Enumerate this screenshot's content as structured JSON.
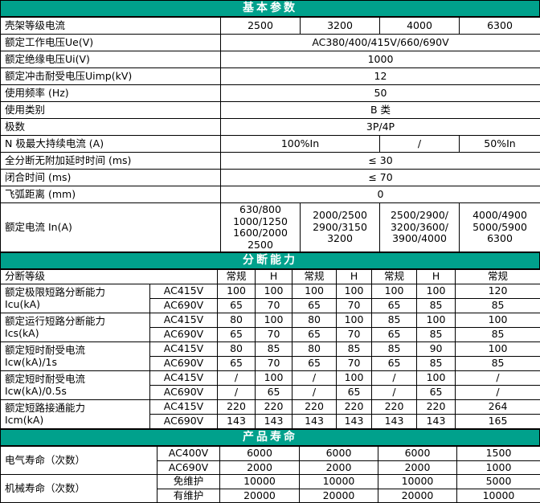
{
  "colors": {
    "accent_teal": "#00A18C",
    "grid_border": "#000000",
    "section_header_text": "#FFFFFF",
    "body_text": "#000000",
    "background": "#FFFFFF"
  },
  "sections": {
    "basic": {
      "title": "基本参数",
      "rows": [
        {
          "cells": [
            {
              "t": "壳架等级电流",
              "type": "label"
            },
            {
              "t": "2500"
            },
            {
              "t": "3200"
            },
            {
              "t": "4000"
            },
            {
              "t": "6300"
            }
          ]
        },
        {
          "cells": [
            {
              "t": "额定工作电压Ue(V)",
              "type": "label"
            },
            {
              "t": "AC380/400/415V/660/690V",
              "cs": 4
            }
          ]
        },
        {
          "cells": [
            {
              "t": "额定绝缘电压Ui(V)",
              "type": "label"
            },
            {
              "t": "1000",
              "cs": 4
            }
          ]
        },
        {
          "cells": [
            {
              "t": "额定冲击耐受电压Uimp(kV)",
              "type": "label"
            },
            {
              "t": "12",
              "cs": 4
            }
          ]
        },
        {
          "cells": [
            {
              "t": "使用频率 (Hz)",
              "type": "label"
            },
            {
              "t": "50",
              "cs": 4
            }
          ]
        },
        {
          "cells": [
            {
              "t": "使用类别",
              "type": "label"
            },
            {
              "t": "B 类",
              "cs": 4
            }
          ]
        },
        {
          "cells": [
            {
              "t": "极数",
              "type": "label"
            },
            {
              "t": "3P/4P",
              "cs": 4
            }
          ]
        },
        {
          "cells": [
            {
              "t": "N 极最大持续电流 (A)",
              "type": "label"
            },
            {
              "t": "100%In",
              "cs": 2
            },
            {
              "t": "/"
            },
            {
              "t": "50%In"
            }
          ]
        },
        {
          "cells": [
            {
              "t": "全分断无附加延时时间 (ms)",
              "type": "label"
            },
            {
              "t": "≤ 30",
              "cs": 4
            }
          ]
        },
        {
          "cells": [
            {
              "t": "闭合时间 (ms)",
              "type": "label"
            },
            {
              "t": "≤ 70",
              "cs": 4
            }
          ]
        },
        {
          "cells": [
            {
              "t": "飞弧距离 (mm)",
              "type": "label"
            },
            {
              "t": "0",
              "cs": 4
            }
          ]
        },
        {
          "cells": [
            {
              "t": "额定电流 In(A)",
              "type": "label"
            },
            {
              "t": "630/800\n1000/1250\n1600/2000\n2500"
            },
            {
              "t": "2000/2500\n2900/3150\n3200"
            },
            {
              "t": "2500/2900/\n3200/3600/\n3900/4000"
            },
            {
              "t": "4000/4900\n5000/5900\n6300"
            }
          ]
        }
      ]
    },
    "breaking": {
      "title": "分断能力",
      "rows": [
        {
          "cells": [
            {
              "t": "分断等级",
              "type": "label",
              "cs": 2
            },
            {
              "t": "常规"
            },
            {
              "t": "H"
            },
            {
              "t": "常规"
            },
            {
              "t": "H"
            },
            {
              "t": "常规"
            },
            {
              "t": "H"
            },
            {
              "t": "常规"
            }
          ]
        },
        {
          "cells": [
            {
              "t": "额定极限短路分断能力\nIcu(kA)",
              "type": "label",
              "rs": 2
            },
            {
              "t": "AC415V"
            },
            {
              "t": "100"
            },
            {
              "t": "100"
            },
            {
              "t": "100"
            },
            {
              "t": "100"
            },
            {
              "t": "100"
            },
            {
              "t": "100"
            },
            {
              "t": "120"
            }
          ]
        },
        {
          "cells": [
            {
              "t": "AC690V"
            },
            {
              "t": "65"
            },
            {
              "t": "70"
            },
            {
              "t": "65"
            },
            {
              "t": "70"
            },
            {
              "t": "65"
            },
            {
              "t": "85"
            },
            {
              "t": "85"
            }
          ]
        },
        {
          "cells": [
            {
              "t": "额定运行短路分断能力\nIcs(kA)",
              "type": "label",
              "rs": 2
            },
            {
              "t": "AC415V"
            },
            {
              "t": "80"
            },
            {
              "t": "100"
            },
            {
              "t": "80"
            },
            {
              "t": "100"
            },
            {
              "t": "85"
            },
            {
              "t": "100"
            },
            {
              "t": "100"
            }
          ]
        },
        {
          "cells": [
            {
              "t": "AC690V"
            },
            {
              "t": "65"
            },
            {
              "t": "70"
            },
            {
              "t": "65"
            },
            {
              "t": "70"
            },
            {
              "t": "65"
            },
            {
              "t": "85"
            },
            {
              "t": "85"
            }
          ]
        },
        {
          "cells": [
            {
              "t": "额定短时耐受电流\nIcw(kA)/1s",
              "type": "label",
              "rs": 2
            },
            {
              "t": "AC415V"
            },
            {
              "t": "80"
            },
            {
              "t": "85"
            },
            {
              "t": "80"
            },
            {
              "t": "85"
            },
            {
              "t": "85"
            },
            {
              "t": "90"
            },
            {
              "t": "100"
            }
          ]
        },
        {
          "cells": [
            {
              "t": "AC690V"
            },
            {
              "t": "65"
            },
            {
              "t": "70"
            },
            {
              "t": "65"
            },
            {
              "t": "70"
            },
            {
              "t": "65"
            },
            {
              "t": "85"
            },
            {
              "t": "85"
            }
          ]
        },
        {
          "cells": [
            {
              "t": "额定短时耐受电流\nIcw(kA)/0.5s",
              "type": "label",
              "rs": 2
            },
            {
              "t": "AC415V"
            },
            {
              "t": "/"
            },
            {
              "t": "100"
            },
            {
              "t": "/"
            },
            {
              "t": "100"
            },
            {
              "t": "/"
            },
            {
              "t": "100"
            },
            {
              "t": "/"
            }
          ]
        },
        {
          "cells": [
            {
              "t": "AC690V"
            },
            {
              "t": "/"
            },
            {
              "t": "65"
            },
            {
              "t": "/"
            },
            {
              "t": "65"
            },
            {
              "t": "/"
            },
            {
              "t": "65"
            },
            {
              "t": "/"
            }
          ]
        },
        {
          "cells": [
            {
              "t": "额定短路接通能力\nIcm(kA)",
              "type": "label",
              "rs": 2
            },
            {
              "t": "AC415V"
            },
            {
              "t": "220"
            },
            {
              "t": "220"
            },
            {
              "t": "220"
            },
            {
              "t": "220"
            },
            {
              "t": "220"
            },
            {
              "t": "220"
            },
            {
              "t": "264"
            }
          ]
        },
        {
          "cells": [
            {
              "t": "AC690V"
            },
            {
              "t": "143"
            },
            {
              "t": "143"
            },
            {
              "t": "143"
            },
            {
              "t": "143"
            },
            {
              "t": "143"
            },
            {
              "t": "143"
            },
            {
              "t": "165"
            }
          ]
        }
      ]
    },
    "life": {
      "title": "产品寿命",
      "rows": [
        {
          "cells": [
            {
              "t": "电气寿命（次数）",
              "type": "label",
              "rs": 2
            },
            {
              "t": "AC400V"
            },
            {
              "t": "6000"
            },
            {
              "t": "6000"
            },
            {
              "t": "6000"
            },
            {
              "t": "1500"
            }
          ]
        },
        {
          "cells": [
            {
              "t": "AC690V"
            },
            {
              "t": "2000"
            },
            {
              "t": "2000"
            },
            {
              "t": "2000"
            },
            {
              "t": "1000"
            }
          ]
        },
        {
          "cells": [
            {
              "t": "机械寿命（次数）",
              "type": "label",
              "rs": 2
            },
            {
              "t": "免维护"
            },
            {
              "t": "10000"
            },
            {
              "t": "10000"
            },
            {
              "t": "10000"
            },
            {
              "t": "5000"
            }
          ]
        },
        {
          "cells": [
            {
              "t": "有维护"
            },
            {
              "t": "20000"
            },
            {
              "t": "20000"
            },
            {
              "t": "20000"
            },
            {
              "t": "10000"
            }
          ]
        }
      ]
    }
  }
}
